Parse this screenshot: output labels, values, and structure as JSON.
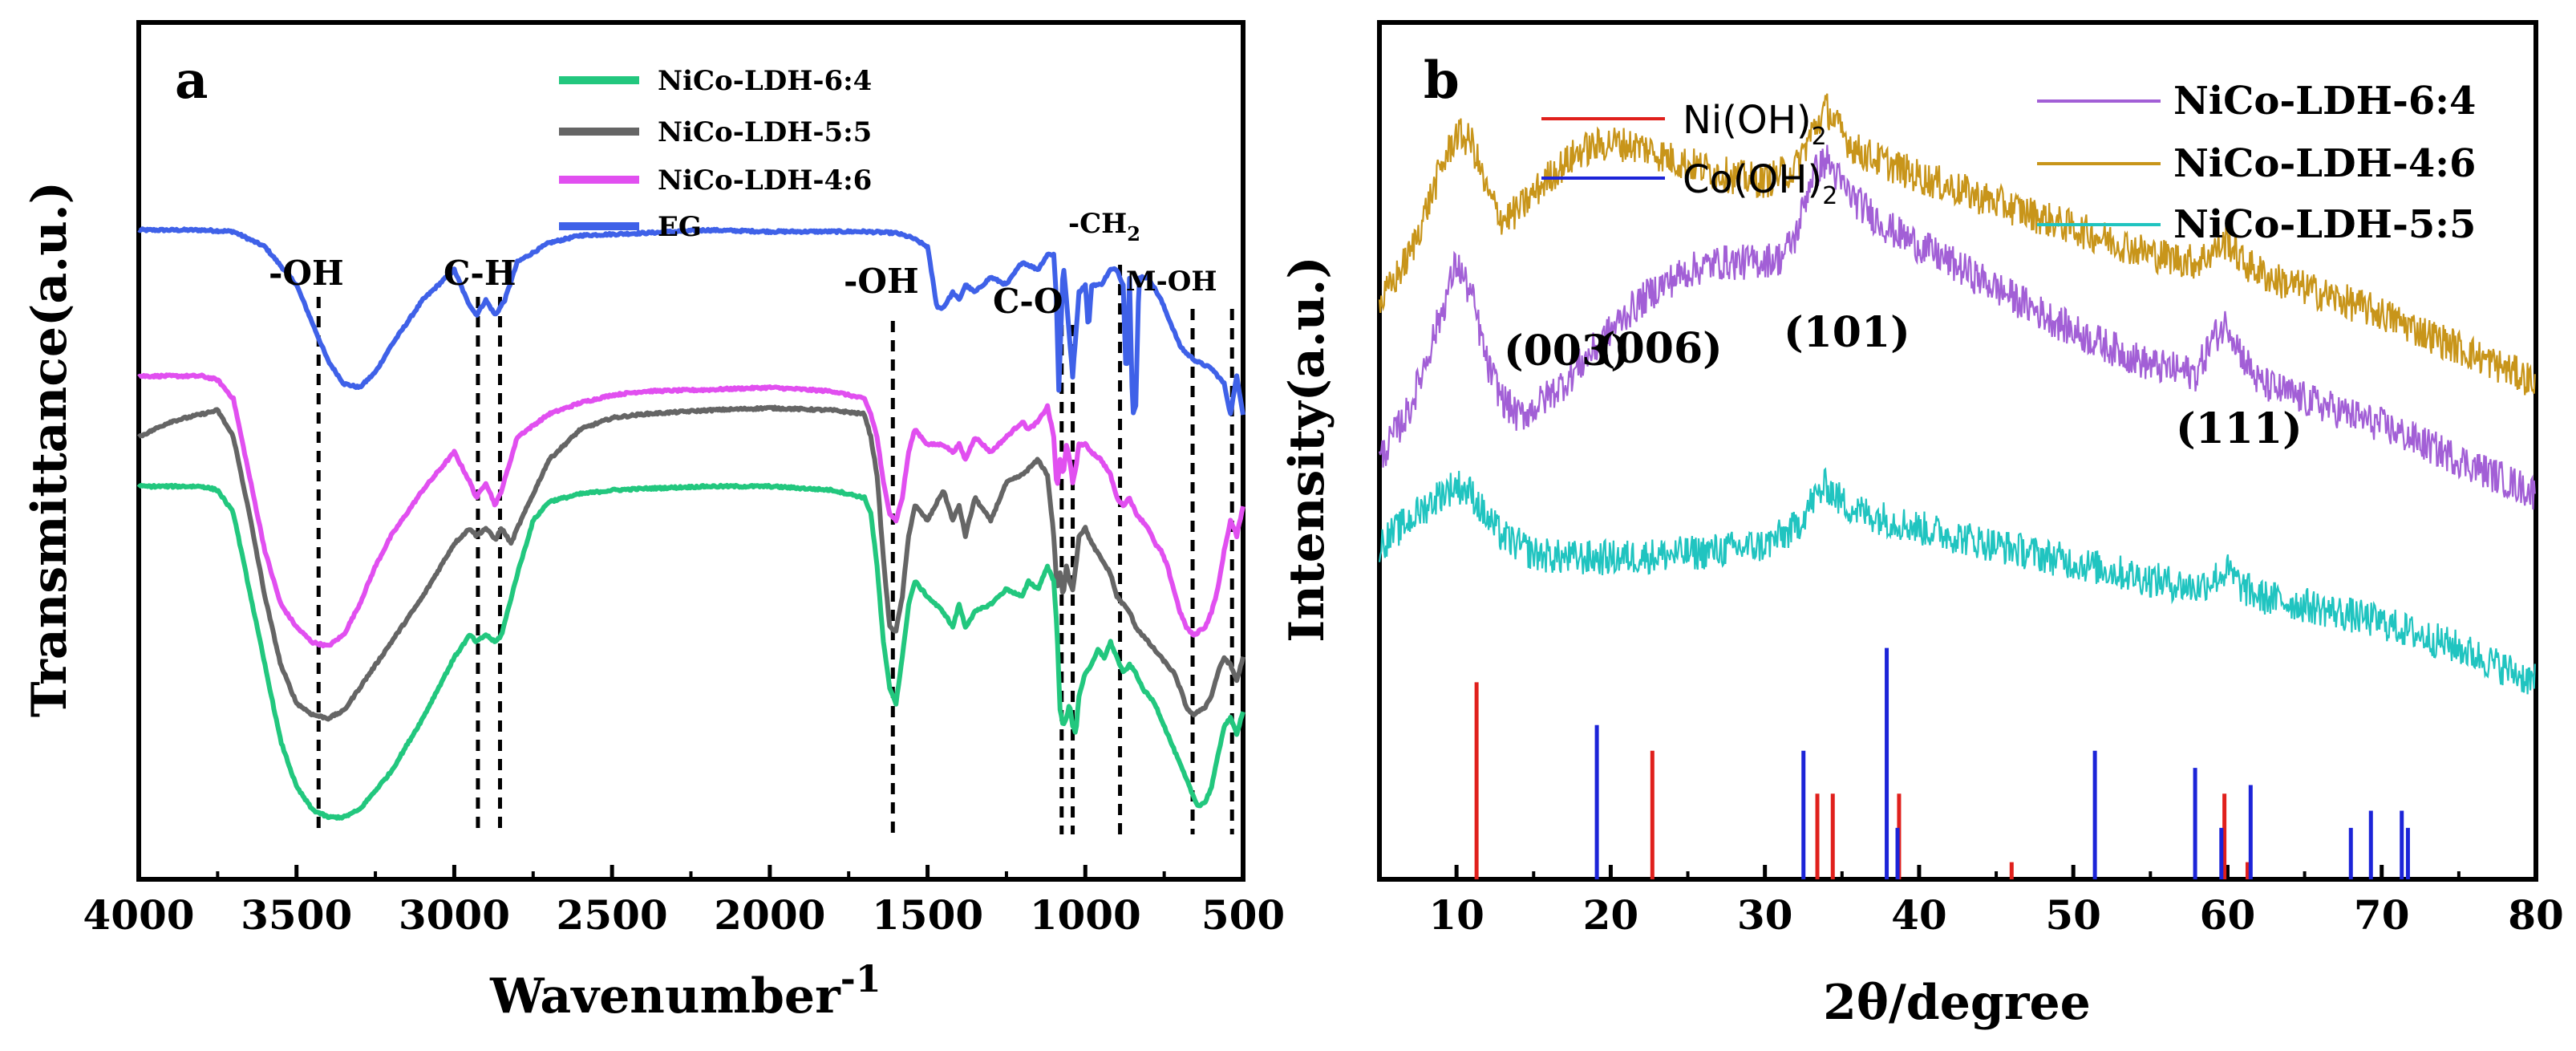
{
  "colors": {
    "ftir_6_4": "#22c77e",
    "ftir_5_5": "#656565",
    "ftir_4_6": "#e14ff0",
    "ftir_EG": "#3f61e8",
    "xrd_6_4": "#a25fd6",
    "xrd_4_6": "#c8951a",
    "xrd_5_5": "#20c4c0",
    "ref_ni": "#e0201c",
    "ref_co": "#1c24d8"
  },
  "chart_data": [
    {
      "panel": "a",
      "type": "line",
      "title": "",
      "xlabel": "Wavenumber",
      "xlabel_sup": "-1",
      "ylabel": "Transmittance(a.u.)",
      "xlim": [
        4000,
        500
      ],
      "x_reversed": true,
      "ylim": [
        0,
        10
      ],
      "x_ticks": [
        4000,
        3500,
        3000,
        2500,
        2000,
        1500,
        1000,
        500
      ],
      "legend": [
        "NiCo-LDH-6:4",
        "NiCo-LDH-5:5",
        "NiCo-LDH-4:6",
        "EG"
      ],
      "legend_position": "top-center",
      "series": [
        {
          "name": "EG",
          "color_key": "ftir_EG",
          "x": [
            4000,
            3800,
            3700,
            3600,
            3500,
            3450,
            3400,
            3350,
            3300,
            3250,
            3200,
            3100,
            3000,
            2960,
            2930,
            2900,
            2870,
            2840,
            2800,
            2700,
            2600,
            2400,
            2200,
            2000,
            1900,
            1800,
            1700,
            1600,
            1550,
            1500,
            1470,
            1450,
            1420,
            1400,
            1380,
            1350,
            1300,
            1250,
            1200,
            1150,
            1120,
            1100,
            1090,
            1085,
            1070,
            1060,
            1050,
            1040,
            1020,
            1000,
            990,
            980,
            950,
            920,
            900,
            880,
            870,
            860,
            850,
            840,
            830,
            800,
            760,
            720,
            700,
            680,
            650,
            600,
            560,
            540,
            520,
            500
          ],
          "y": [
            8.22,
            8.22,
            8.2,
            8.0,
            7.5,
            7.0,
            6.5,
            6.2,
            6.15,
            6.35,
            6.7,
            7.3,
            7.7,
            7.3,
            7.1,
            7.3,
            7.1,
            7.3,
            7.8,
            8.05,
            8.15,
            8.18,
            8.22,
            8.2,
            8.2,
            8.2,
            8.2,
            8.18,
            8.12,
            8.0,
            7.2,
            7.2,
            7.4,
            7.3,
            7.5,
            7.4,
            7.6,
            7.5,
            7.8,
            7.7,
            7.9,
            7.9,
            7.2,
            6.0,
            7.8,
            7.3,
            6.8,
            6.3,
            7.4,
            7.5,
            6.9,
            7.5,
            7.5,
            7.7,
            7.7,
            7.5,
            6.2,
            7.6,
            5.8,
            5.9,
            7.6,
            7.6,
            7.3,
            6.9,
            6.7,
            6.6,
            6.5,
            6.4,
            6.2,
            5.8,
            6.3,
            5.8
          ]
        },
        {
          "name": "NiCo-LDH-4:6",
          "color_key": "ftir_4_6",
          "x": [
            4000,
            3800,
            3750,
            3700,
            3650,
            3600,
            3550,
            3500,
            3450,
            3400,
            3350,
            3300,
            3250,
            3200,
            3100,
            3000,
            2950,
            2930,
            2900,
            2870,
            2850,
            2800,
            2700,
            2600,
            2500,
            2400,
            2200,
            2000,
            1800,
            1700,
            1680,
            1660,
            1640,
            1620,
            1600,
            1580,
            1560,
            1540,
            1500,
            1450,
            1420,
            1400,
            1380,
            1350,
            1300,
            1250,
            1200,
            1180,
            1150,
            1120,
            1100,
            1090,
            1080,
            1070,
            1060,
            1050,
            1040,
            1030,
            1020,
            1000,
            980,
            950,
            920,
            900,
            880,
            860,
            840,
            820,
            800,
            780,
            760,
            740,
            720,
            700,
            680,
            660,
            650,
            640,
            620,
            600,
            580,
            560,
            540,
            520,
            500
          ],
          "y": [
            6.3,
            6.3,
            6.25,
            6.0,
            5.0,
            4.0,
            3.3,
            3.0,
            2.8,
            2.75,
            2.9,
            3.3,
            3.8,
            4.2,
            4.8,
            5.3,
            4.9,
            4.7,
            4.9,
            4.6,
            4.8,
            5.5,
            5.8,
            5.95,
            6.05,
            6.1,
            6.12,
            6.15,
            6.1,
            6.0,
            5.8,
            5.5,
            4.9,
            4.5,
            4.4,
            4.7,
            5.3,
            5.6,
            5.4,
            5.4,
            5.3,
            5.4,
            5.2,
            5.5,
            5.3,
            5.5,
            5.7,
            5.6,
            5.7,
            5.9,
            5.5,
            4.8,
            5.2,
            5.0,
            5.4,
            5.2,
            4.9,
            5.1,
            5.4,
            5.4,
            5.3,
            5.2,
            5.0,
            4.7,
            4.6,
            4.7,
            4.5,
            4.4,
            4.3,
            4.1,
            4.0,
            3.8,
            3.5,
            3.2,
            3.0,
            2.9,
            2.9,
            2.95,
            3.0,
            3.2,
            3.5,
            4.0,
            4.4,
            4.2,
            4.6
          ]
        },
        {
          "name": "NiCo-LDH-5:5",
          "color_key": "ftir_5_5",
          "x": [
            4000,
            3900,
            3800,
            3750,
            3700,
            3650,
            3600,
            3550,
            3500,
            3450,
            3400,
            3350,
            3300,
            3200,
            3100,
            3000,
            2950,
            2930,
            2900,
            2870,
            2850,
            2820,
            2800,
            2700,
            2600,
            2500,
            2400,
            2200,
            2000,
            1800,
            1700,
            1680,
            1660,
            1640,
            1620,
            1600,
            1580,
            1560,
            1540,
            1500,
            1450,
            1420,
            1400,
            1380,
            1350,
            1300,
            1250,
            1200,
            1150,
            1120,
            1100,
            1090,
            1080,
            1070,
            1060,
            1050,
            1040,
            1030,
            1020,
            1000,
            980,
            950,
            920,
            900,
            880,
            860,
            840,
            820,
            800,
            760,
            720,
            700,
            680,
            660,
            650,
            640,
            620,
            600,
            580,
            560,
            540,
            520,
            500
          ],
          "y": [
            5.5,
            5.7,
            5.8,
            5.85,
            5.5,
            4.5,
            3.4,
            2.5,
            2.0,
            1.85,
            1.8,
            1.9,
            2.2,
            2.8,
            3.4,
            4.1,
            4.3,
            4.2,
            4.3,
            4.15,
            4.3,
            4.1,
            4.3,
            5.2,
            5.6,
            5.75,
            5.8,
            5.85,
            5.88,
            5.85,
            5.8,
            5.5,
            5.0,
            3.9,
            3.0,
            2.95,
            3.4,
            4.2,
            4.6,
            4.4,
            4.8,
            4.4,
            4.6,
            4.2,
            4.7,
            4.4,
            4.9,
            5.0,
            5.2,
            5.0,
            4.2,
            3.5,
            3.7,
            3.4,
            3.8,
            3.6,
            3.5,
            3.8,
            4.2,
            4.3,
            4.1,
            3.9,
            3.7,
            3.4,
            3.3,
            3.2,
            3.0,
            2.9,
            2.8,
            2.6,
            2.4,
            2.2,
            1.95,
            1.85,
            1.85,
            1.9,
            1.95,
            2.1,
            2.4,
            2.6,
            2.5,
            2.3,
            2.6
          ]
        },
        {
          "name": "NiCo-LDH-6:4",
          "color_key": "ftir_6_4",
          "x": [
            4000,
            3900,
            3800,
            3750,
            3700,
            3650,
            3600,
            3550,
            3500,
            3450,
            3400,
            3350,
            3300,
            3200,
            3100,
            3000,
            2950,
            2930,
            2900,
            2870,
            2850,
            2800,
            2750,
            2700,
            2600,
            2500,
            2400,
            2200,
            2000,
            1800,
            1700,
            1680,
            1660,
            1640,
            1620,
            1600,
            1580,
            1560,
            1540,
            1500,
            1450,
            1420,
            1400,
            1380,
            1350,
            1300,
            1250,
            1200,
            1180,
            1150,
            1120,
            1100,
            1090,
            1080,
            1070,
            1060,
            1050,
            1040,
            1030,
            1020,
            1000,
            980,
            960,
            940,
            920,
            900,
            880,
            860,
            840,
            820,
            800,
            780,
            760,
            740,
            720,
            700,
            680,
            660,
            650,
            640,
            620,
            600,
            580,
            560,
            540,
            520,
            500
          ],
          "y": [
            4.85,
            4.85,
            4.85,
            4.8,
            4.5,
            3.5,
            2.5,
            1.5,
            0.9,
            0.6,
            0.5,
            0.5,
            0.6,
            1.1,
            1.8,
            2.6,
            2.9,
            2.8,
            2.9,
            2.8,
            2.9,
            3.7,
            4.4,
            4.65,
            4.75,
            4.8,
            4.82,
            4.85,
            4.85,
            4.8,
            4.7,
            4.5,
            3.8,
            2.8,
            2.2,
            2.0,
            2.6,
            3.3,
            3.6,
            3.4,
            3.2,
            3.0,
            3.3,
            3.0,
            3.2,
            3.3,
            3.5,
            3.4,
            3.6,
            3.5,
            3.8,
            3.6,
            3.0,
            1.9,
            1.7,
            1.8,
            2.0,
            1.7,
            1.6,
            2.1,
            2.4,
            2.5,
            2.7,
            2.6,
            2.8,
            2.6,
            2.4,
            2.5,
            2.4,
            2.2,
            2.1,
            2.0,
            1.8,
            1.6,
            1.4,
            1.2,
            1.0,
            0.8,
            0.7,
            0.65,
            0.7,
            0.9,
            1.3,
            1.7,
            1.8,
            1.6,
            1.9
          ]
        }
      ],
      "annotations": [
        {
          "text": "-OH",
          "x": 3430,
          "line_x": [
            3430
          ]
        },
        {
          "text": "C-H",
          "x": 2890,
          "line_x": [
            2925,
            2855
          ]
        },
        {
          "text": "-OH",
          "x": 1610,
          "line_x": [
            1610
          ]
        },
        {
          "text": "C-O",
          "x": 1060,
          "line_x": [
            1075,
            1040
          ]
        },
        {
          "text": "-CH",
          "sub": "2",
          "x": 900,
          "line_x": [
            890
          ]
        },
        {
          "text": "M-OH",
          "x": 630,
          "line_x": [
            660,
            535
          ]
        }
      ]
    },
    {
      "panel": "b",
      "type": "line",
      "title": "",
      "xlabel": "2θ/degree",
      "ylabel": "Intensity(a.u.)",
      "xlim": [
        5,
        80
      ],
      "ylim": [
        0,
        10
      ],
      "x_ticks": [
        10,
        20,
        30,
        40,
        50,
        60,
        70,
        80
      ],
      "legend": [
        "Ni(OH)",
        "Co(OH)",
        "NiCo-LDH-6:4",
        "NiCo-LDH-4:6",
        "NiCo-LDH-5:5"
      ],
      "legend_sub": "2",
      "legend_position": "top",
      "series": [
        {
          "name": "NiCo-LDH-4:6",
          "color_key": "xrd_4_6",
          "x": [
            5,
            7,
            9,
            10,
            11,
            12,
            13,
            14,
            16,
            18,
            20,
            22,
            24,
            26,
            28,
            30,
            32,
            33,
            34,
            35,
            36,
            38,
            40,
            45,
            50,
            55,
            58,
            60,
            61,
            63,
            65,
            70,
            75,
            80
          ],
          "y": [
            6.7,
            7.3,
            8.3,
            8.7,
            8.6,
            8.0,
            7.7,
            7.8,
            8.2,
            8.5,
            8.6,
            8.55,
            8.4,
            8.3,
            8.2,
            8.15,
            8.3,
            8.7,
            9.0,
            8.7,
            8.5,
            8.35,
            8.2,
            7.9,
            7.6,
            7.3,
            7.2,
            7.45,
            7.2,
            7.0,
            6.9,
            6.6,
            6.2,
            5.8
          ]
        },
        {
          "name": "NiCo-LDH-6:4",
          "color_key": "xrd_6_4",
          "x": [
            5,
            7,
            9,
            10,
            11,
            12,
            13,
            14,
            15,
            17,
            19,
            21,
            23,
            25,
            27,
            29,
            31,
            32,
            33,
            34,
            35,
            36,
            38,
            40,
            45,
            50,
            55,
            58,
            59,
            60,
            61,
            62,
            65,
            70,
            75,
            80
          ],
          "y": [
            4.9,
            5.5,
            6.6,
            7.2,
            6.8,
            6.0,
            5.6,
            5.4,
            5.5,
            5.8,
            6.2,
            6.6,
            6.9,
            7.1,
            7.2,
            7.2,
            7.25,
            7.5,
            8.2,
            8.4,
            8.1,
            7.9,
            7.6,
            7.4,
            6.9,
            6.4,
            6.0,
            5.9,
            6.3,
            6.5,
            6.1,
            5.8,
            5.6,
            5.3,
            4.9,
            4.5
          ]
        },
        {
          "name": "NiCo-LDH-5:5",
          "color_key": "xrd_5_5",
          "x": [
            5,
            7,
            9,
            10,
            11,
            12,
            13,
            15,
            17,
            20,
            25,
            30,
            32,
            33,
            34,
            35,
            36,
            38,
            40,
            45,
            50,
            55,
            58,
            60,
            61,
            62,
            65,
            70,
            75,
            80
          ],
          "y": [
            3.9,
            4.2,
            4.5,
            4.6,
            4.5,
            4.2,
            4.0,
            3.8,
            3.75,
            3.75,
            3.8,
            3.9,
            4.1,
            4.4,
            4.6,
            4.4,
            4.3,
            4.2,
            4.1,
            3.9,
            3.7,
            3.5,
            3.4,
            3.6,
            3.4,
            3.3,
            3.2,
            3.0,
            2.7,
            2.3
          ]
        }
      ],
      "reference_lines": [
        {
          "name": "Ni(OH)2",
          "color_key": "ref_ni",
          "positions": [
            11.3,
            22.7,
            33.4,
            34.4,
            38.7,
            46.0,
            59.8,
            61.3
          ],
          "heights": [
            2.3,
            1.5,
            1.0,
            1.0,
            1.0,
            0.2,
            1.0,
            0.2
          ]
        },
        {
          "name": "Co(OH)2",
          "color_key": "ref_co",
          "positions": [
            19.1,
            32.5,
            37.9,
            38.6,
            51.4,
            57.9,
            59.6,
            61.5,
            68.0,
            69.3,
            71.3,
            71.7
          ],
          "heights": [
            1.8,
            1.5,
            2.7,
            0.6,
            1.5,
            1.3,
            0.6,
            1.1,
            0.6,
            0.8,
            0.8,
            0.6
          ]
        }
      ],
      "annotations": [
        {
          "text": "(003)",
          "x": 11
        },
        {
          "text": "(006)",
          "x": 21
        },
        {
          "text": "(101)",
          "x": 33.5
        },
        {
          "text": "(111)",
          "x": 62
        }
      ]
    }
  ]
}
